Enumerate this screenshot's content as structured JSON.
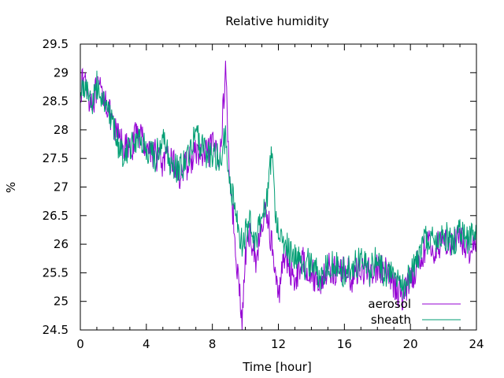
{
  "chart_data": {
    "type": "line",
    "title": "Relative humidity",
    "xlabel": "Time [hour]",
    "ylabel": "%",
    "xlim": [
      0,
      24
    ],
    "ylim": [
      24.5,
      29.5
    ],
    "xticks": [
      "0",
      "4",
      "8",
      "12",
      "16",
      "20",
      "24"
    ],
    "yticks": [
      "24.5",
      "25",
      "25.5",
      "26",
      "26.5",
      "27",
      "27.5",
      "28",
      "28.5",
      "29",
      "29.5"
    ],
    "grid": false,
    "legend_position": "bottom-right",
    "series": [
      {
        "name": "aerosol",
        "color": "#9400d3",
        "x": [
          0,
          0.25,
          0.5,
          0.75,
          1,
          1.5,
          2,
          2.5,
          3,
          3.5,
          4,
          4.5,
          5,
          5.5,
          6,
          6.5,
          7,
          7.5,
          8,
          8.5,
          8.8,
          9,
          9.2,
          9.4,
          9.6,
          9.8,
          10,
          10.3,
          10.6,
          11,
          11.3,
          11.6,
          11.8,
          12,
          12.3,
          12.6,
          13,
          13.5,
          14,
          14.5,
          15,
          15.5,
          16,
          16.5,
          17,
          17.5,
          18,
          18.5,
          19,
          19.5,
          20,
          20.5,
          21,
          21.5,
          22,
          22.5,
          23,
          23.5,
          24
        ],
        "y": [
          28.7,
          28.9,
          28.6,
          28.5,
          28.7,
          28.6,
          28.0,
          27.8,
          27.6,
          28.0,
          27.7,
          27.6,
          27.4,
          27.5,
          27.2,
          27.4,
          27.6,
          27.5,
          27.7,
          27.6,
          29.1,
          27.4,
          26.7,
          26.0,
          25.3,
          24.6,
          25.8,
          26.2,
          25.7,
          26.3,
          26.6,
          26.0,
          25.5,
          25.0,
          25.9,
          25.6,
          25.4,
          25.7,
          25.5,
          25.3,
          25.6,
          25.5,
          25.6,
          25.4,
          25.6,
          25.5,
          25.6,
          25.5,
          25.3,
          25.1,
          25.4,
          25.7,
          26.0,
          25.9,
          26.1,
          26.0,
          26.1,
          25.9,
          26.1
        ]
      },
      {
        "name": "sheath",
        "color": "#009e73",
        "x": [
          0,
          0.25,
          0.5,
          0.75,
          1,
          1.5,
          2,
          2.5,
          3,
          3.5,
          4,
          4.5,
          5,
          5.5,
          6,
          6.5,
          7,
          7.5,
          8,
          8.5,
          8.8,
          9,
          9.2,
          9.4,
          9.6,
          9.8,
          10,
          10.3,
          10.6,
          11,
          11.3,
          11.6,
          11.8,
          12,
          12.3,
          12.6,
          13,
          13.5,
          14,
          14.5,
          15,
          15.5,
          16,
          16.5,
          17,
          17.5,
          18,
          18.5,
          19,
          19.5,
          20,
          20.5,
          21,
          21.5,
          22,
          22.5,
          23,
          23.5,
          24
        ],
        "y": [
          28.6,
          28.8,
          28.7,
          28.4,
          28.8,
          28.5,
          28.0,
          27.6,
          27.7,
          27.9,
          27.6,
          27.5,
          27.8,
          27.4,
          27.3,
          27.5,
          27.9,
          27.6,
          27.6,
          27.5,
          27.9,
          27.3,
          26.9,
          26.6,
          26.3,
          26.0,
          26.2,
          26.4,
          26.1,
          26.5,
          26.8,
          27.6,
          26.6,
          26.3,
          26.1,
          25.9,
          25.8,
          25.6,
          25.7,
          25.4,
          25.7,
          25.6,
          25.5,
          25.6,
          25.7,
          25.5,
          25.8,
          25.4,
          25.6,
          25.2,
          25.5,
          25.8,
          26.1,
          26.0,
          26.2,
          26.0,
          26.2,
          26.1,
          26.2
        ]
      }
    ]
  }
}
